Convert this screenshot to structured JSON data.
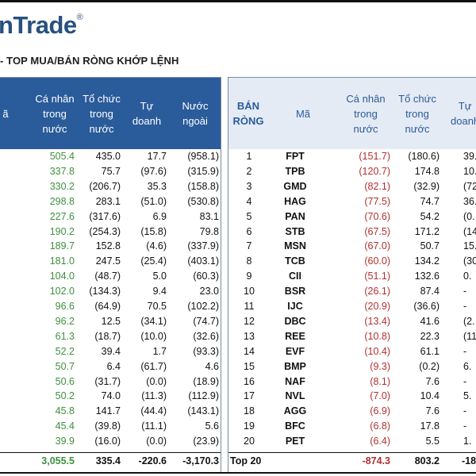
{
  "brand": {
    "logo_text": "nTrade",
    "logo_mark": "®"
  },
  "subtitle": "- TOP MUA/BÁN RÒNG KHỚP LỆNH",
  "left_table": {
    "headers": [
      "ã",
      "Cá nhân\ntrong\nnước",
      "Tổ chức\ntrong\nnước",
      "Tự\ndoanh",
      "Nước\nngoài"
    ],
    "rows": [
      [
        "505.4",
        "435.0",
        "17.7",
        "(958.1)"
      ],
      [
        "337.8",
        "75.7",
        "(97.6)",
        "(315.9)"
      ],
      [
        "330.2",
        "(206.7)",
        "35.3",
        "(158.8)"
      ],
      [
        "298.8",
        "283.1",
        "(51.0)",
        "(530.8)"
      ],
      [
        "227.6",
        "(317.6)",
        "6.9",
        "83.1"
      ],
      [
        "190.2",
        "(254.3)",
        "(15.8)",
        "79.8"
      ],
      [
        "189.7",
        "152.8",
        "(4.6)",
        "(337.9)"
      ],
      [
        "181.0",
        "247.5",
        "(25.4)",
        "(403.1)"
      ],
      [
        "104.0",
        "(48.7)",
        "5.0",
        "(60.3)"
      ],
      [
        "102.0",
        "(134.3)",
        "9.4",
        "23.0"
      ],
      [
        "96.6",
        "(64.9)",
        "70.5",
        "(102.2)"
      ],
      [
        "96.2",
        "12.5",
        "(34.1)",
        "(74.7)"
      ],
      [
        "61.3",
        "(18.7)",
        "(10.0)",
        "(32.6)"
      ],
      [
        "52.2",
        "39.4",
        "1.7",
        "(93.3)"
      ],
      [
        "50.7",
        "6.4",
        "(61.7)",
        "4.6"
      ],
      [
        "50.6",
        "(31.7)",
        "(0.0)",
        "(18.9)"
      ],
      [
        "50.2",
        "74.0",
        "(11.3)",
        "(112.9)"
      ],
      [
        "45.8",
        "141.7",
        "(44.4)",
        "(143.1)"
      ],
      [
        "45.4",
        "(39.8)",
        "(11.1)",
        "5.6"
      ],
      [
        "39.9",
        "(16.0)",
        "(0.0)",
        "(23.9)"
      ]
    ],
    "total": [
      "3,055.5",
      "335.4",
      "-220.6",
      "-3,170.3"
    ]
  },
  "right_table": {
    "headers": [
      "BÁN\nRÒNG",
      "Mã",
      "Cá nhân\ntrong\nnước",
      "Tổ chức\ntrong\nnước",
      "Tự\ndoanh"
    ],
    "rows": [
      [
        "1",
        "FPT",
        "(151.7)",
        "(180.6)",
        "39."
      ],
      [
        "2",
        "TPB",
        "(120.7)",
        "174.8",
        "10."
      ],
      [
        "3",
        "GMD",
        "(82.1)",
        "(32.9)",
        "(72."
      ],
      [
        "4",
        "HAG",
        "(77.5)",
        "74.7",
        "36."
      ],
      [
        "5",
        "PAN",
        "(70.6)",
        "54.2",
        "(0."
      ],
      [
        "6",
        "STB",
        "(67.5)",
        "171.2",
        "(14."
      ],
      [
        "7",
        "MSN",
        "(67.0)",
        "50.7",
        "15."
      ],
      [
        "8",
        "TCB",
        "(60.0)",
        "134.2",
        "(30."
      ],
      [
        "9",
        "CII",
        "(51.1)",
        "132.6",
        "0."
      ],
      [
        "10",
        "BSR",
        "(26.1)",
        "87.4",
        "-"
      ],
      [
        "11",
        "IJC",
        "(20.9)",
        "(36.6)",
        "-"
      ],
      [
        "12",
        "DBC",
        "(13.4)",
        "41.6",
        "(2."
      ],
      [
        "13",
        "REE",
        "(10.8)",
        "22.3",
        "(11."
      ],
      [
        "14",
        "EVF",
        "(10.4)",
        "61.1",
        "-"
      ],
      [
        "15",
        "BMP",
        "(9.3)",
        "(0.2)",
        "6."
      ],
      [
        "16",
        "NAF",
        "(8.1)",
        "7.6",
        "-"
      ],
      [
        "17",
        "NVL",
        "(7.0)",
        "10.4",
        "5."
      ],
      [
        "18",
        "AGG",
        "(6.9)",
        "7.6",
        "-"
      ],
      [
        "19",
        "BFC",
        "(6.8)",
        "17.8",
        "-"
      ],
      [
        "20",
        "PET",
        "(6.4)",
        "5.5",
        "1."
      ]
    ],
    "total": [
      "Top 20",
      "-874.3",
      "803.2",
      "-18"
    ]
  },
  "colors": {
    "header_blue": "#2a5b9a",
    "header_light": "#e5ebf5",
    "buy_green": "#3f8f3f",
    "sell_red": "#b03030",
    "logo_blue": "#27507f"
  }
}
